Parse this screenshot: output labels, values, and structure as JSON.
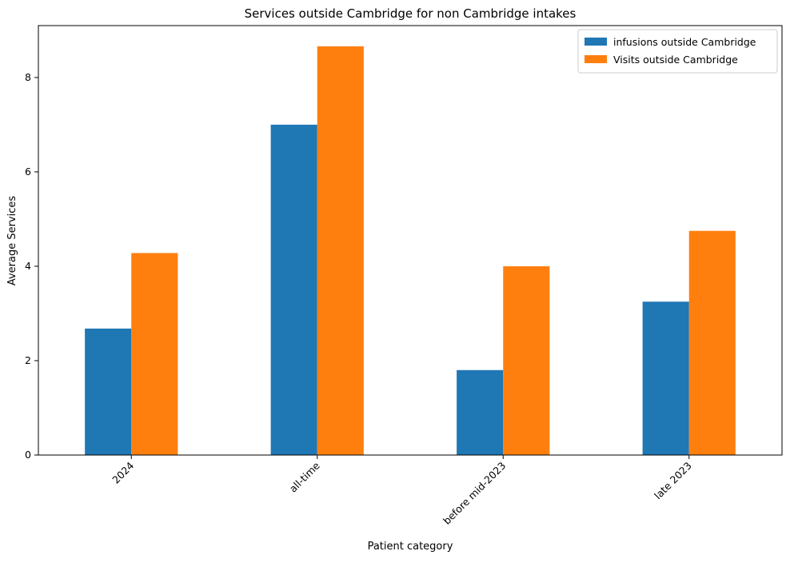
{
  "chart_data": {
    "type": "bar",
    "title": "Services outside Cambridge for non Cambridge intakes",
    "xlabel": "Patient category",
    "ylabel": "Average Services",
    "categories": [
      "2024",
      "all-time",
      "before mid-2023",
      "late 2023"
    ],
    "series": [
      {
        "name": "infusions outside Cambridge",
        "color": "#1f77b4",
        "values": [
          2.68,
          7.0,
          1.8,
          3.25
        ]
      },
      {
        "name": "Visits outside Cambridge",
        "color": "#ff7f0e",
        "values": [
          4.28,
          8.66,
          4.0,
          4.75
        ]
      }
    ],
    "ylim": [
      0,
      9.1
    ],
    "yticks": [
      "0",
      "2",
      "4",
      "6",
      "8"
    ],
    "grid": false,
    "legend_position": "top-right"
  }
}
